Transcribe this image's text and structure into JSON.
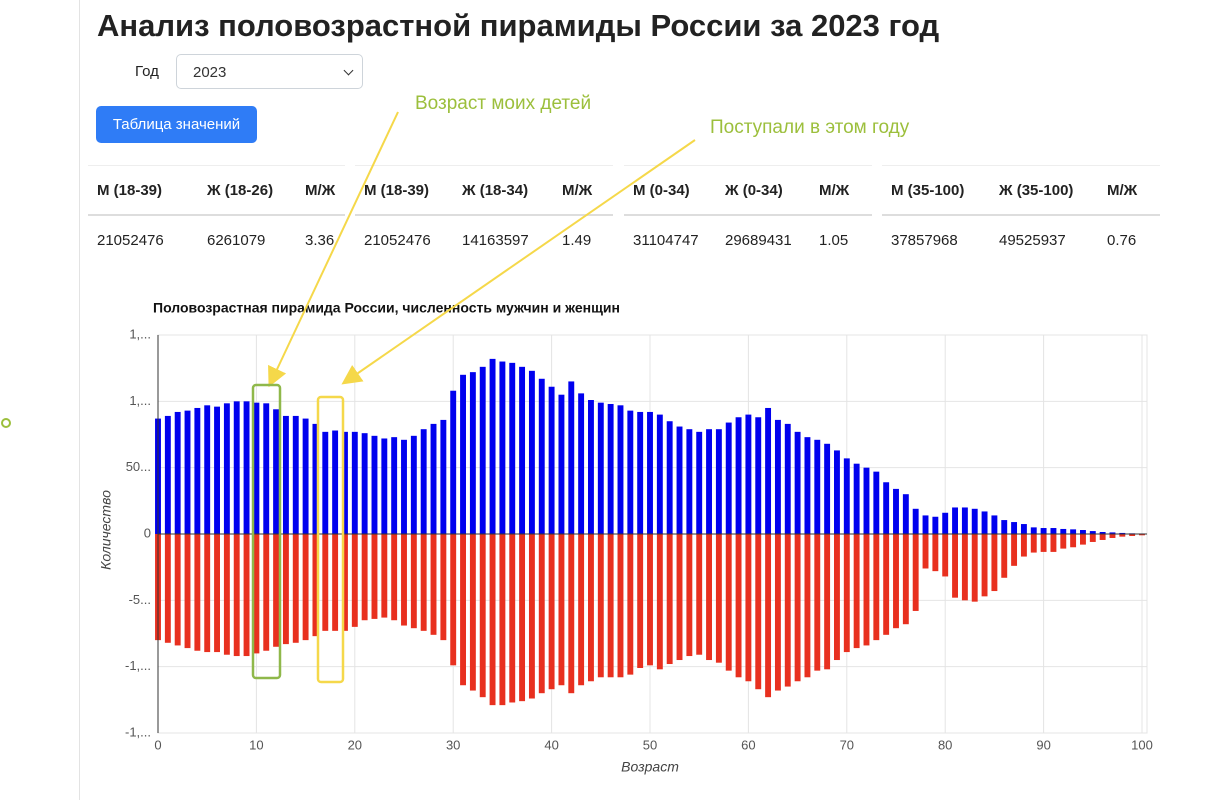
{
  "header": {
    "title": "Анализ половозрастной пирамиды России за 2023 год"
  },
  "controls": {
    "year_label": "Год",
    "year": "2023",
    "button": "Таблица значений"
  },
  "tables": [
    {
      "columns": [
        "М (18-39)",
        "Ж (18-26)",
        "М/Ж"
      ],
      "values": [
        21052476,
        6261079,
        3.36
      ]
    },
    {
      "columns": [
        "М (18-39)",
        "Ж (18-34)",
        "М/Ж"
      ],
      "values": [
        21052476,
        14163597,
        1.49
      ]
    },
    {
      "columns": [
        "М (0-34)",
        "Ж (0-34)",
        "М/Ж"
      ],
      "values": [
        31104747,
        29689431,
        1.05
      ]
    },
    {
      "columns": [
        "М (35-100)",
        "Ж (35-100)",
        "М/Ж"
      ],
      "values": [
        37857968,
        49525937,
        0.76
      ]
    }
  ],
  "annotations": [
    "Возраст моих детей",
    "Поступали в этом году"
  ],
  "chart_data": {
    "type": "bar",
    "title": "Половозрастная пирамида России, численность мужчин и женщин",
    "xlabel": "Возраст",
    "ylabel": "Количество",
    "x": [
      0,
      1,
      2,
      3,
      4,
      5,
      6,
      7,
      8,
      9,
      10,
      11,
      12,
      13,
      14,
      15,
      16,
      17,
      18,
      19,
      20,
      21,
      22,
      23,
      24,
      25,
      26,
      27,
      28,
      29,
      30,
      31,
      32,
      33,
      34,
      35,
      36,
      37,
      38,
      39,
      40,
      41,
      42,
      43,
      44,
      45,
      46,
      47,
      48,
      49,
      50,
      51,
      52,
      53,
      54,
      55,
      56,
      57,
      58,
      59,
      60,
      61,
      62,
      63,
      64,
      65,
      66,
      67,
      68,
      69,
      70,
      71,
      72,
      73,
      74,
      75,
      76,
      77,
      78,
      79,
      80,
      81,
      82,
      83,
      84,
      85,
      86,
      87,
      88,
      89,
      90,
      91,
      92,
      93,
      94,
      95,
      96,
      97,
      98,
      99,
      100
    ],
    "series": [
      {
        "color": "#0000ee",
        "values": [
          870000,
          890000,
          920000,
          930000,
          950000,
          970000,
          960000,
          985000,
          1000000,
          1000000,
          990000,
          985000,
          940000,
          890000,
          890000,
          870000,
          830000,
          770000,
          780000,
          770000,
          770000,
          760000,
          740000,
          720000,
          730000,
          710000,
          740000,
          790000,
          830000,
          860000,
          1080000,
          1200000,
          1220000,
          1260000,
          1320000,
          1300000,
          1290000,
          1260000,
          1230000,
          1170000,
          1110000,
          1050000,
          1150000,
          1060000,
          1010000,
          990000,
          980000,
          970000,
          930000,
          920000,
          920000,
          900000,
          850000,
          810000,
          790000,
          770000,
          790000,
          790000,
          840000,
          880000,
          900000,
          880000,
          950000,
          860000,
          830000,
          770000,
          730000,
          710000,
          680000,
          630000,
          570000,
          530000,
          500000,
          470000,
          390000,
          340000,
          300000,
          190000,
          140000,
          130000,
          160000,
          200000,
          200000,
          190000,
          170000,
          140000,
          105000,
          90000,
          75000,
          50000,
          45000,
          45000,
          38000,
          35000,
          30000,
          22000,
          15000,
          12000,
          8000,
          5000,
          4000
        ]
      },
      {
        "color": "#e8301f",
        "values": [
          -800000,
          -820000,
          -840000,
          -860000,
          -880000,
          -890000,
          -890000,
          -910000,
          -920000,
          -920000,
          -900000,
          -880000,
          -850000,
          -830000,
          -820000,
          -800000,
          -770000,
          -730000,
          -730000,
          -730000,
          -700000,
          -650000,
          -640000,
          -630000,
          -650000,
          -690000,
          -710000,
          -730000,
          -760000,
          -800000,
          -990000,
          -1140000,
          -1180000,
          -1230000,
          -1290000,
          -1290000,
          -1270000,
          -1260000,
          -1240000,
          -1200000,
          -1170000,
          -1140000,
          -1200000,
          -1140000,
          -1110000,
          -1080000,
          -1080000,
          -1080000,
          -1060000,
          -1010000,
          -990000,
          -1020000,
          -980000,
          -950000,
          -920000,
          -910000,
          -950000,
          -970000,
          -1030000,
          -1080000,
          -1110000,
          -1170000,
          -1230000,
          -1180000,
          -1150000,
          -1110000,
          -1080000,
          -1030000,
          -1020000,
          -950000,
          -890000,
          -860000,
          -840000,
          -800000,
          -760000,
          -710000,
          -680000,
          -580000,
          -260000,
          -280000,
          -320000,
          -480000,
          -500000,
          -510000,
          -470000,
          -430000,
          -330000,
          -240000,
          -170000,
          -140000,
          -135000,
          -135000,
          -110000,
          -100000,
          -80000,
          -60000,
          -45000,
          -30000,
          -20000,
          -15000,
          -10000
        ]
      }
    ],
    "xlim": [
      0,
      100
    ],
    "xticks": [
      0,
      10,
      20,
      30,
      40,
      50,
      60,
      70,
      80,
      90,
      100
    ],
    "ylim": [
      -1500000,
      1500000
    ],
    "yticks": [
      {
        "value": -1500000,
        "label": "-1,..."
      },
      {
        "value": -1000000,
        "label": "-1,..."
      },
      {
        "value": -500000,
        "label": "-5..."
      },
      0,
      {
        "value": 500000,
        "label": "50..."
      },
      {
        "value": 1000000,
        "label": "1,..."
      },
      {
        "value": 1500000,
        "label": "1,..."
      }
    ],
    "grid": true
  }
}
